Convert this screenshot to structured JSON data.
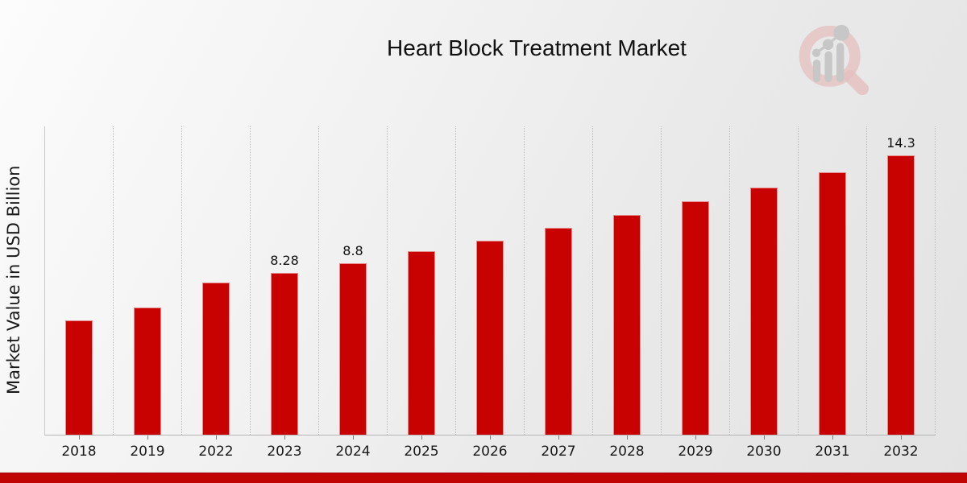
{
  "page": {
    "title": "Heart Block Treatment Market"
  },
  "chart_data": {
    "type": "bar",
    "title": "Heart Block Treatment Market",
    "xlabel": "",
    "ylabel": "Market Value in USD Billion",
    "categories": [
      "2018",
      "2019",
      "2022",
      "2023",
      "2024",
      "2025",
      "2026",
      "2027",
      "2028",
      "2029",
      "2030",
      "2031",
      "2032"
    ],
    "values": [
      5.85,
      6.5,
      7.8,
      8.28,
      8.8,
      9.4,
      9.95,
      10.6,
      11.25,
      11.95,
      12.65,
      13.45,
      14.3
    ],
    "bar_labels": [
      "",
      "",
      "",
      "8.28",
      "8.8",
      "",
      "",
      "",
      "",
      "",
      "",
      "",
      "14.3"
    ],
    "bar_color": "#c80101",
    "ylim": [
      0,
      15.8
    ],
    "grid": "vertical-dotted-gridlines",
    "legend": "none",
    "units": "USD Billion"
  },
  "logo": {
    "icon": "magnifier-bar-chart-logo",
    "ring_color": "#e5c0c0",
    "glyph_color": "#c7c7c7"
  },
  "footer": {
    "banner_color": "#c00404"
  }
}
